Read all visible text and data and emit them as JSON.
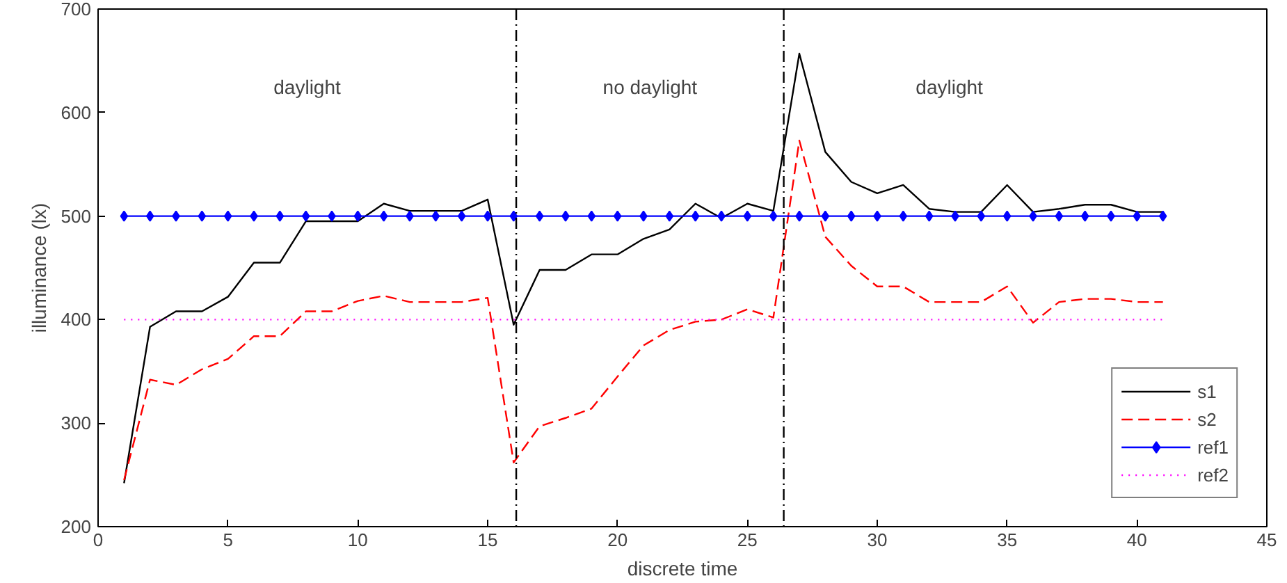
{
  "chart_data": {
    "type": "line",
    "xlabel": "discrete time",
    "ylabel": "illuminance (lx)",
    "xlim": [
      0,
      45
    ],
    "ylim": [
      200,
      700
    ],
    "xticks": [
      0,
      5,
      10,
      15,
      20,
      25,
      30,
      35,
      40,
      45
    ],
    "yticks": [
      200,
      300,
      400,
      500,
      600,
      700
    ],
    "x": [
      1,
      2,
      3,
      4,
      5,
      6,
      7,
      8,
      9,
      10,
      11,
      12,
      13,
      14,
      15,
      16,
      17,
      18,
      19,
      20,
      21,
      22,
      23,
      24,
      25,
      26,
      27,
      28,
      29,
      30,
      31,
      32,
      33,
      34,
      35,
      36,
      37,
      38,
      39,
      40,
      41
    ],
    "series": [
      {
        "name": "s1",
        "color": "#000000",
        "line_style": "solid",
        "marker": "none",
        "values": [
          242,
          393,
          408,
          408,
          422,
          455,
          455,
          495,
          495,
          495,
          512,
          505,
          505,
          505,
          516,
          395,
          448,
          448,
          463,
          463,
          478,
          487,
          512,
          498,
          512,
          505,
          657,
          562,
          533,
          522,
          530,
          507,
          504,
          504,
          530,
          504,
          507,
          511,
          511,
          504,
          504
        ]
      },
      {
        "name": "s2",
        "color": "#ff0000",
        "line_style": "dashed",
        "marker": "none",
        "values": [
          245,
          342,
          337,
          352,
          362,
          384,
          384,
          408,
          408,
          418,
          423,
          417,
          417,
          417,
          421,
          262,
          297,
          305,
          314,
          345,
          375,
          390,
          398,
          400,
          410,
          402,
          573,
          480,
          452,
          432,
          432,
          417,
          417,
          417,
          432,
          397,
          417,
          420,
          420,
          417,
          417
        ]
      },
      {
        "name": "ref1",
        "color": "#0000ff",
        "line_style": "solid",
        "marker": "diamond",
        "values": [
          500,
          500,
          500,
          500,
          500,
          500,
          500,
          500,
          500,
          500,
          500,
          500,
          500,
          500,
          500,
          500,
          500,
          500,
          500,
          500,
          500,
          500,
          500,
          500,
          500,
          500,
          500,
          500,
          500,
          500,
          500,
          500,
          500,
          500,
          500,
          500,
          500,
          500,
          500,
          500,
          500
        ]
      },
      {
        "name": "ref2",
        "color": "#ff00ff",
        "line_style": "dotted",
        "marker": "none",
        "values": [
          400,
          400,
          400,
          400,
          400,
          400,
          400,
          400,
          400,
          400,
          400,
          400,
          400,
          400,
          400,
          400,
          400,
          400,
          400,
          400,
          400,
          400,
          400,
          400,
          400,
          400,
          400,
          400,
          400,
          400,
          400,
          400,
          400,
          400,
          400,
          400,
          400,
          400,
          400,
          400,
          400
        ]
      }
    ],
    "ref_lines": [
      {
        "axis": "x",
        "value": 16.1,
        "color": "#000000",
        "line_style": "dashdot"
      },
      {
        "axis": "x",
        "value": 26.4,
        "color": "#000000",
        "line_style": "dashdot"
      }
    ],
    "annotations": [
      "daylight",
      "no daylight",
      "daylight"
    ],
    "grid": false,
    "legend": "bottom right"
  }
}
